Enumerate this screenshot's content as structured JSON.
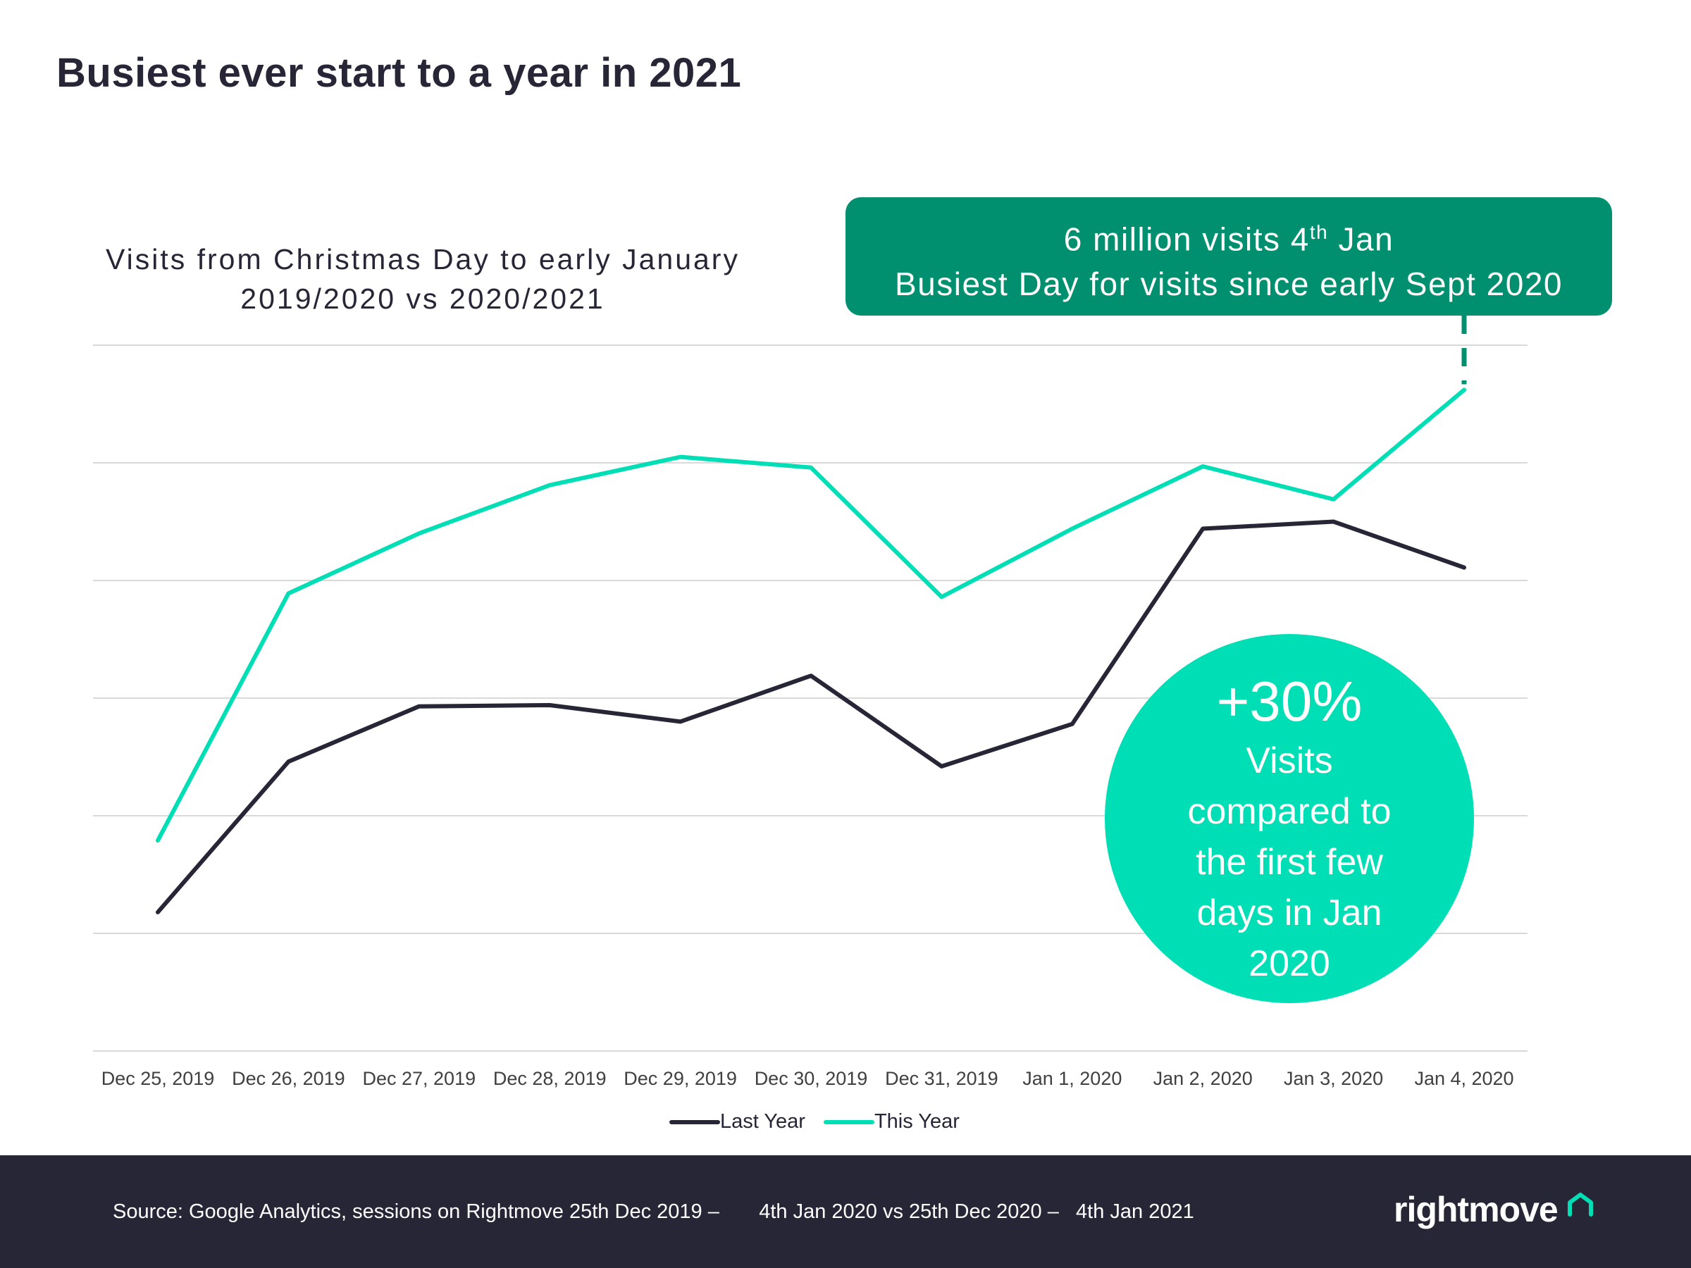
{
  "title": "Busiest ever start to a year in 2021",
  "callout": {
    "line1_pre": "6 million visits 4",
    "line1_sup": "th",
    "line1_post": " Jan",
    "line2": "Busiest Day for visits since early Sept 2020"
  },
  "badge": {
    "big": "+30%",
    "text": "Visits compared to the first few days in Jan 2020"
  },
  "footer": {
    "source": "Source: Google Analytics, sessions on Rightmove 25th Dec 2019 –       4th Jan 2020 vs 25th Dec 2020 –   4th Jan 2021",
    "logo": "rightmove"
  },
  "colors": {
    "last_year": "#262637",
    "this_year": "#00deb6",
    "callout": "#008f6f",
    "footer": "#262637"
  },
  "chart_data": {
    "type": "line",
    "title": "Visits from Christmas Day to early January",
    "subtitle": "2019/2020 vs  2020/2021",
    "categories": [
      "Dec 25, 2019",
      "Dec 26, 2019",
      "Dec 27, 2019",
      "Dec 28, 2019",
      "Dec 29, 2019",
      "Dec 30, 2019",
      "Dec 31, 2019",
      "Jan 1, 2020",
      "Jan 2, 2020",
      "Jan 3, 2020",
      "Jan 4, 2020"
    ],
    "series": [
      {
        "name": "Last Year",
        "values": [
          1.18,
          2.46,
          2.93,
          2.94,
          2.8,
          3.19,
          2.42,
          2.78,
          4.44,
          4.5,
          4.11
        ]
      },
      {
        "name": "This Year",
        "values": [
          1.79,
          3.89,
          4.4,
          4.81,
          5.05,
          4.96,
          3.86,
          4.44,
          4.97,
          4.69,
          5.62
        ]
      }
    ],
    "ylim": [
      0,
      6
    ],
    "gridlines": 6,
    "legend": "bottom-center",
    "xlabel": "",
    "ylabel": ""
  }
}
